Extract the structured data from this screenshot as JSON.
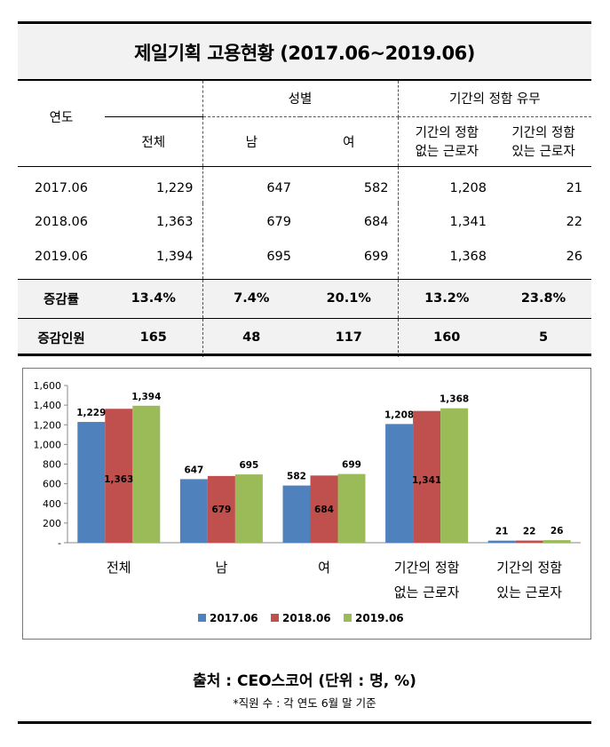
{
  "title": "제일기획 고용현황 (2017.06~2019.06)",
  "table": {
    "year_header": "연도",
    "total_header": "전체",
    "gender_header": "성별",
    "male_header": "남",
    "female_header": "여",
    "contract_header": "기간의 정함 유무",
    "permanent_header_line1": "기간의 정함",
    "permanent_header_line2": "없는 근로자",
    "fixed_header_line1": "기간의 정함",
    "fixed_header_line2": "있는 근로자",
    "rows": [
      {
        "year": "2017.06",
        "total": "1,229",
        "male": "647",
        "female": "582",
        "permanent": "1,208",
        "fixed": "21"
      },
      {
        "year": "2018.06",
        "total": "1,363",
        "male": "679",
        "female": "684",
        "permanent": "1,341",
        "fixed": "22"
      },
      {
        "year": "2019.06",
        "total": "1,394",
        "male": "695",
        "female": "699",
        "permanent": "1,368",
        "fixed": "26"
      }
    ],
    "growth_rate": {
      "label": "증감률",
      "total": "13.4%",
      "male": "7.4%",
      "female": "20.1%",
      "permanent": "13.2%",
      "fixed": "23.8%"
    },
    "growth_count": {
      "label": "증감인원",
      "total": "165",
      "male": "48",
      "female": "117",
      "permanent": "160",
      "fixed": "5"
    }
  },
  "chart_data": {
    "type": "bar",
    "categories": [
      [
        "전체"
      ],
      [
        "남"
      ],
      [
        "여"
      ],
      [
        "기간의 정함",
        "없는 근로자"
      ],
      [
        "기간의 정함",
        "있는 근로자"
      ]
    ],
    "series": [
      {
        "name": "2017.06",
        "color": "#4f81bd",
        "values": [
          1229,
          647,
          582,
          1208,
          21
        ]
      },
      {
        "name": "2018.06",
        "color": "#c0504d",
        "values": [
          1363,
          679,
          684,
          1341,
          22
        ]
      },
      {
        "name": "2019.06",
        "color": "#9bbb59",
        "values": [
          1394,
          695,
          699,
          1368,
          26
        ]
      }
    ],
    "ylim": [
      0,
      1600
    ],
    "yticks": [
      "-",
      "200",
      "400",
      "600",
      "800",
      "1,000",
      "1,200",
      "1,400",
      "1,600"
    ],
    "legend": "bottom",
    "grid": false
  },
  "source": "출처 : CEO스코어 (단위 : 명, %)",
  "note": "*직원 수 : 각 연도 6월 말 기준"
}
